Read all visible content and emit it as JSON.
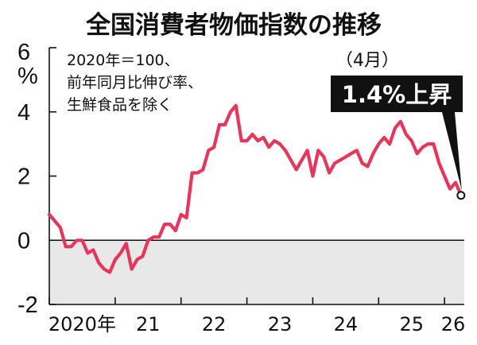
{
  "chart_data": {
    "type": "line",
    "title": "全国消費者物価指数の推移",
    "notes": [
      "2020年＝100、",
      "前年同月比伸び率、",
      "生鮮食品を除く"
    ],
    "ylabel": "%",
    "ylim": [
      -2,
      6
    ],
    "yticks": [
      -2,
      0,
      2,
      4,
      6
    ],
    "xlim": [
      2020.0,
      2026.3
    ],
    "xticks": [
      {
        "value": 2020.0,
        "label": "2020年"
      },
      {
        "value": 2021.0,
        "label": "21"
      },
      {
        "value": 2022.0,
        "label": "22"
      },
      {
        "value": 2023.0,
        "label": "23"
      },
      {
        "value": 2024.0,
        "label": "24"
      },
      {
        "value": 2025.0,
        "label": "25"
      },
      {
        "value": 2026.0,
        "label": "26"
      }
    ],
    "series": [
      {
        "color": "#e8355a",
        "x": [
          2020.0,
          2020.083,
          2020.167,
          2020.25,
          2020.333,
          2020.417,
          2020.5,
          2020.583,
          2020.667,
          2020.75,
          2020.833,
          2020.917,
          2021.0,
          2021.083,
          2021.167,
          2021.25,
          2021.333,
          2021.417,
          2021.5,
          2021.583,
          2021.667,
          2021.75,
          2021.833,
          2021.917,
          2022.0,
          2022.083,
          2022.167,
          2022.25,
          2022.333,
          2022.417,
          2022.5,
          2022.583,
          2022.667,
          2022.75,
          2022.833,
          2022.917,
          2023.0,
          2023.083,
          2023.167,
          2023.25,
          2023.333,
          2023.417,
          2023.5,
          2023.583,
          2023.667,
          2023.75,
          2023.833,
          2023.917,
          2024.0,
          2024.083,
          2024.167,
          2024.25,
          2024.333,
          2024.417,
          2024.5,
          2024.583,
          2024.667,
          2024.75,
          2024.833,
          2024.917,
          2025.0,
          2025.083,
          2025.167,
          2025.25,
          2025.333,
          2025.417,
          2025.5,
          2025.583,
          2025.667,
          2025.75,
          2025.833,
          2025.917,
          2026.0,
          2026.083,
          2026.167,
          2026.25
        ],
        "values": [
          0.8,
          0.6,
          0.4,
          -0.2,
          -0.2,
          0.0,
          0.0,
          -0.4,
          -0.3,
          -0.7,
          -0.9,
          -1.0,
          -0.6,
          -0.4,
          -0.1,
          -0.9,
          -0.6,
          -0.5,
          0.0,
          0.1,
          0.1,
          0.5,
          0.5,
          0.3,
          0.8,
          0.7,
          2.1,
          2.1,
          2.2,
          2.8,
          2.9,
          3.6,
          3.6,
          4.0,
          4.2,
          3.1,
          3.1,
          3.3,
          3.1,
          3.2,
          2.9,
          3.1,
          3.0,
          2.8,
          2.5,
          2.2,
          2.5,
          2.8,
          2.0,
          2.8,
          2.6,
          2.1,
          2.4,
          2.5,
          2.6,
          2.7,
          2.8,
          2.4,
          2.3,
          2.7,
          3.0,
          3.2,
          3.0,
          3.5,
          3.7,
          3.3,
          3.1,
          2.7,
          2.9,
          3.0,
          3.0,
          2.4,
          2.0,
          1.6,
          1.8,
          1.4
        ]
      }
    ],
    "negative_region_color": "#e8e8e8",
    "callout": {
      "month_label": "（4月）",
      "value_label": "1.4%上昇"
    }
  }
}
